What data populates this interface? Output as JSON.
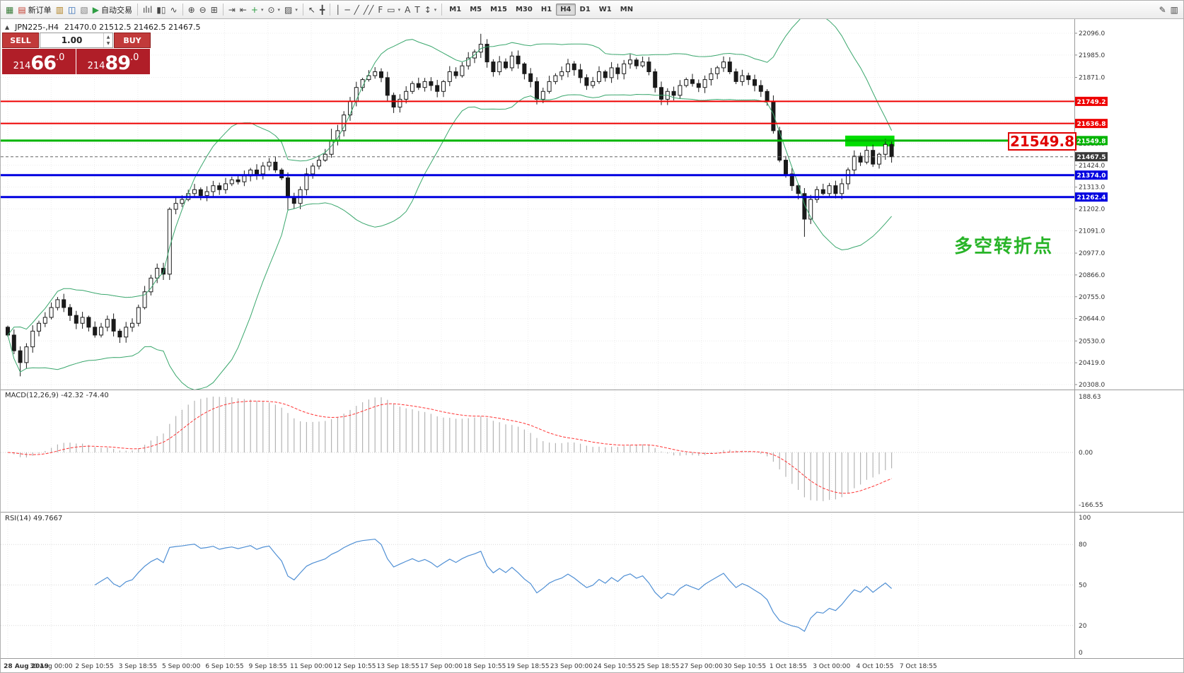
{
  "toolbar": {
    "groups": [
      {
        "items": [
          {
            "name": "new-chart-icon",
            "glyph": "▦",
            "color": "#3b7d3b"
          },
          {
            "name": "new-order-button",
            "glyph": "▤",
            "color": "#c0392b",
            "label": "新订单"
          },
          {
            "name": "profile-icon",
            "glyph": "▥",
            "color": "#b08020"
          },
          {
            "name": "market-watch-icon",
            "glyph": "◫",
            "color": "#2060b0"
          },
          {
            "name": "terminal-icon",
            "glyph": "▧",
            "color": "#808080"
          },
          {
            "name": "autotrading-button",
            "glyph": "▶",
            "color": "#2f9e44",
            "label": "自动交易"
          }
        ]
      },
      {
        "items": [
          {
            "name": "bar-chart-icon",
            "glyph": "ılıl"
          },
          {
            "name": "candlestick-chart-icon",
            "glyph": "▮▯"
          },
          {
            "name": "line-chart-icon",
            "glyph": "∿"
          }
        ]
      },
      {
        "items": [
          {
            "name": "zoom-in-icon",
            "glyph": "⊕"
          },
          {
            "name": "zoom-out-icon",
            "glyph": "⊖"
          },
          {
            "name": "tile-windows-icon",
            "glyph": "⊞"
          }
        ]
      },
      {
        "items": [
          {
            "name": "auto-scroll-icon",
            "glyph": "⇥"
          },
          {
            "name": "chart-shift-icon",
            "glyph": "⇤"
          },
          {
            "name": "indicators-icon",
            "glyph": "+",
            "color": "#2f9e44",
            "caret": true
          },
          {
            "name": "periods-icon",
            "glyph": "⊙",
            "caret": true
          },
          {
            "name": "templates-icon",
            "glyph": "▨",
            "caret": true
          }
        ]
      },
      {
        "items": [
          {
            "name": "cursor-icon",
            "glyph": "↖"
          },
          {
            "name": "crosshair-icon",
            "glyph": "╋"
          }
        ]
      },
      {
        "items": [
          {
            "name": "vertical-line-icon",
            "glyph": "│"
          },
          {
            "name": "horizontal-line-icon",
            "glyph": "─"
          },
          {
            "name": "trendline-icon",
            "glyph": "╱"
          },
          {
            "name": "equidistant-channel-icon",
            "glyph": "╱╱"
          },
          {
            "name": "fibonacci-icon",
            "glyph": "F"
          },
          {
            "name": "shapes-icon",
            "glyph": "▭",
            "caret": true
          },
          {
            "name": "text-icon",
            "glyph": "A"
          },
          {
            "name": "text-label-icon",
            "glyph": "T"
          },
          {
            "name": "arrows-icon",
            "glyph": "↕",
            "caret": true
          }
        ]
      }
    ],
    "timeframes": [
      "M1",
      "M5",
      "M15",
      "M30",
      "H1",
      "H4",
      "D1",
      "W1",
      "MN"
    ],
    "active_timeframe": "H4",
    "right_items": [
      {
        "name": "pencil-icon",
        "glyph": "✎"
      },
      {
        "name": "window-icon",
        "glyph": "▥"
      }
    ]
  },
  "chart": {
    "collapse_glyph": "▲",
    "symbol": "JPN225-,H4",
    "ohlc_text": "21470.0 21512.5 21462.5 21467.5"
  },
  "trade_panel": {
    "sell_label": "SELL",
    "buy_label": "BUY",
    "volume": "1.00",
    "sell_price": {
      "prefix": "214",
      "big": "66",
      "suffix": ".0"
    },
    "buy_price": {
      "prefix": "214",
      "big": "89",
      "suffix": ".0"
    }
  },
  "annotations": {
    "price_callout": "21549.8",
    "note_text": "多空转折点",
    "highlight_rect": {
      "x1_index": 135,
      "x2_index": 142,
      "price_top": 21575,
      "price_bottom": 21520,
      "color": "#00dd00"
    }
  },
  "hlines": [
    {
      "price": 21749.2,
      "color": "#ee0000",
      "width": 2
    },
    {
      "price": 21636.8,
      "color": "#ee0000",
      "width": 2
    },
    {
      "price": 21549.8,
      "color": "#00b400",
      "width": 3
    },
    {
      "price": 21374.0,
      "color": "#0000e0",
      "width": 3
    },
    {
      "price": 21262.4,
      "color": "#0000e0",
      "width": 3
    },
    {
      "price": 21467.5,
      "color": "#666666",
      "width": 1,
      "dashed": true
    }
  ],
  "price_axis": {
    "labels": [
      "22096.0",
      "21985.0",
      "21871.0",
      "21760.0",
      "21646.0",
      "21535.0",
      "21424.0",
      "21313.0",
      "21202.0",
      "21091.0",
      "20977.0",
      "20866.0",
      "20755.0",
      "20644.0",
      "20530.0",
      "20419.0",
      "20308.0"
    ],
    "tags": [
      {
        "text": "21749.2",
        "price": 21749.2,
        "color": "#ee0000"
      },
      {
        "text": "21636.8",
        "price": 21636.8,
        "color": "#ee0000"
      },
      {
        "text": "21549.8",
        "price": 21549.8,
        "color": "#00b400"
      },
      {
        "text": "21467.5",
        "price": 21467.5,
        "color": "#3a3a3a"
      },
      {
        "text": "21374.0",
        "price": 21374.0,
        "color": "#0000e0"
      },
      {
        "text": "21262.4",
        "price": 21262.4,
        "color": "#0000e0"
      }
    ]
  },
  "macd_panel": {
    "label": "MACD(12,26,9)",
    "values": "-42.32 -74.40",
    "axis_labels": [
      "188.63",
      "0.00",
      "-166.55"
    ]
  },
  "rsi_panel": {
    "label": "RSI(14)",
    "value": "49.7667",
    "axis_labels": [
      "100",
      "80",
      "50",
      "20",
      "0"
    ]
  },
  "time_axis": {
    "labels": [
      "28 Aug 2019",
      "30 Aug 00:00",
      "2 Sep 10:55",
      "3 Sep 18:55",
      "5 Sep 00:00",
      "6 Sep 10:55",
      "9 Sep 18:55",
      "11 Sep 00:00",
      "12 Sep 10:55",
      "13 Sep 18:55",
      "17 Sep 00:00",
      "18 Sep 10:55",
      "19 Sep 18:55",
      "23 Sep 00:00",
      "24 Sep 10:55",
      "25 Sep 18:55",
      "27 Sep 00:00",
      "30 Sep 10:55",
      "1 Oct 18:55",
      "3 Oct 00:00",
      "4 Oct 10:55",
      "7 Oct 18:55"
    ]
  },
  "chart_data": {
    "type": "candlestick",
    "symbol": "JPN225",
    "timeframe": "H4",
    "y_axis_range": [
      20308,
      22096
    ],
    "closes": [
      20560,
      20480,
      20420,
      20500,
      20580,
      20620,
      20650,
      20700,
      20740,
      20700,
      20660,
      20620,
      20650,
      20600,
      20560,
      20600,
      20640,
      20580,
      20550,
      20600,
      20620,
      20700,
      20780,
      20850,
      20900,
      20870,
      21200,
      21230,
      21250,
      21280,
      21300,
      21270,
      21290,
      21320,
      21300,
      21330,
      21350,
      21340,
      21370,
      21400,
      21380,
      21420,
      21440,
      21400,
      21360,
      21260,
      21230,
      21300,
      21380,
      21420,
      21450,
      21480,
      21550,
      21600,
      21680,
      21750,
      21820,
      21860,
      21880,
      21900,
      21870,
      21780,
      21720,
      21760,
      21800,
      21840,
      21820,
      21850,
      21830,
      21800,
      21850,
      21900,
      21880,
      21930,
      21970,
      22000,
      22040,
      21950,
      21900,
      21950,
      21920,
      21980,
      21940,
      21890,
      21850,
      21760,
      21800,
      21850,
      21880,
      21900,
      21940,
      21910,
      21870,
      21830,
      21850,
      21900,
      21870,
      21920,
      21890,
      21940,
      21960,
      21930,
      21950,
      21900,
      21820,
      21760,
      21800,
      21780,
      21830,
      21860,
      21840,
      21820,
      21860,
      21890,
      21920,
      21950,
      21900,
      21850,
      21880,
      21860,
      21830,
      21800,
      21750,
      21600,
      21450,
      21380,
      21320,
      21280,
      21150,
      21250,
      21300,
      21280,
      21320,
      21280,
      21330,
      21400,
      21470,
      21440,
      21500,
      21430,
      21480,
      21530,
      21467.5
    ],
    "wick_overrides": {
      "high": {
        "52": 21610,
        "76": 22093
      },
      "low": {
        "2": 20350,
        "45": 21195,
        "128": 21060
      }
    },
    "indicators": [
      {
        "name": "Bollinger Bands",
        "period": 20,
        "deviation": 2
      },
      {
        "name": "MACD",
        "fast": 12,
        "slow": 26,
        "signal": 9,
        "current_main": -42.32,
        "current_signal": -74.4
      },
      {
        "name": "RSI",
        "period": 14,
        "current": 49.7667
      }
    ]
  }
}
